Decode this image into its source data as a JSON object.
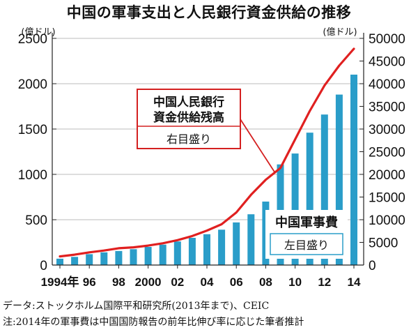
{
  "chart_data": {
    "type": "bar+line",
    "title": "中国の軍事支出と人民銀行資金供給の推移",
    "y_left": {
      "unit_label": "(億ドル)",
      "ylim": [
        0,
        2500
      ],
      "ticks": [
        0,
        500,
        1000,
        1500,
        2000,
        2500
      ],
      "tick_labels": [
        "0",
        "500",
        "1000",
        "1500",
        "2000",
        "2500"
      ]
    },
    "y_right": {
      "unit_label": "(億ドル)",
      "ylim": [
        0,
        50000
      ],
      "ticks": [
        0,
        5000,
        10000,
        15000,
        20000,
        25000,
        30000,
        35000,
        40000,
        45000,
        50000
      ],
      "tick_labels": [
        "0",
        "5000",
        "10000",
        "15000",
        "20000",
        "25000",
        "30000",
        "35000",
        "40000",
        "45000",
        "50000"
      ]
    },
    "x_tick_labels": [
      {
        "year": 1994,
        "label": "1994年"
      },
      {
        "year": 1996,
        "label": "96"
      },
      {
        "year": 1998,
        "label": "98"
      },
      {
        "year": 2000,
        "label": "2000"
      },
      {
        "year": 2002,
        "label": "02"
      },
      {
        "year": 2004,
        "label": "04"
      },
      {
        "year": 2006,
        "label": "06"
      },
      {
        "year": 2008,
        "label": "08"
      },
      {
        "year": 2010,
        "label": "10"
      },
      {
        "year": 2012,
        "label": "12"
      },
      {
        "year": 2014,
        "label": "14"
      }
    ],
    "years": [
      1994,
      1995,
      1996,
      1997,
      1998,
      1999,
      2000,
      2001,
      2002,
      2003,
      2004,
      2005,
      2006,
      2007,
      2008,
      2009,
      2010,
      2011,
      2012,
      2013,
      2014
    ],
    "series": [
      {
        "name": "中国軍事費",
        "axis": "left",
        "type": "bar",
        "color": "#2a9dc9",
        "values": [
          70,
          90,
          120,
          140,
          155,
          175,
          200,
          225,
          260,
          300,
          340,
          390,
          470,
          560,
          700,
          1110,
          1230,
          1460,
          1660,
          1880,
          2100
        ]
      },
      {
        "name": "中国人民銀行資金供給残高",
        "axis": "right",
        "type": "line",
        "color": "#e02020",
        "values": [
          1900,
          2300,
          2800,
          3200,
          3700,
          3900,
          4300,
          4800,
          5500,
          6400,
          7600,
          9000,
          11600,
          15500,
          18800,
          21400,
          27700,
          34000,
          39600,
          44000,
          47700
        ]
      }
    ],
    "annotations": {
      "line_label": [
        "中国人民銀行",
        "資金供給残高"
      ],
      "line_axis_note": "右目盛り",
      "bar_label": "中国軍事費",
      "bar_axis_note": "左目盛り"
    }
  },
  "notes": {
    "source": "データ:ストックホルム国際平和研究所(2013年まで)、CEIC",
    "note": "注:2014年の軍事費は中国国防報告の前年比伸び率に応じた筆者推計"
  }
}
